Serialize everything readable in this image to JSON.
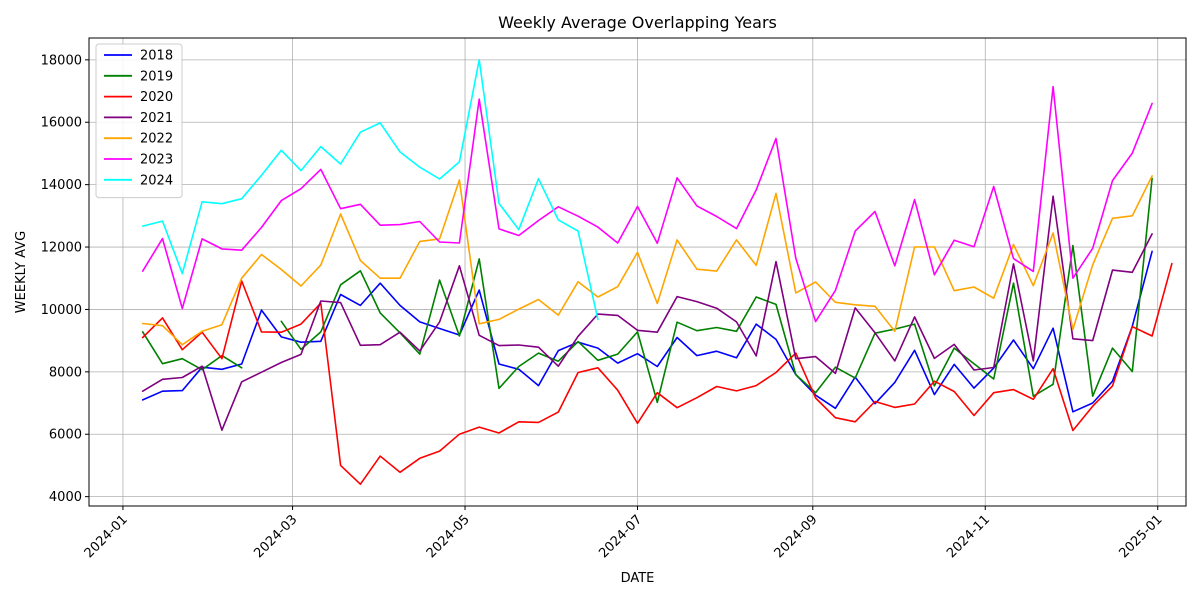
{
  "chart_data": {
    "type": "line",
    "title": "Weekly Average Overlapping Years",
    "xlabel": "DATE",
    "ylabel": "WEEKLY AVG",
    "x_start": "2024-01-08",
    "x_step_days": 7,
    "xlim": [
      "2023-12-20",
      "2025-01-11"
    ],
    "ylim": [
      3700,
      18700
    ],
    "x_ticks": [
      "2024-01-01",
      "2024-03-01",
      "2024-05-01",
      "2024-07-01",
      "2024-09-01",
      "2024-11-01",
      "2025-01-01"
    ],
    "x_tick_labels": [
      "2024-01",
      "2024-03",
      "2024-05",
      "2024-07",
      "2024-09",
      "2024-11",
      "2025-01"
    ],
    "y_ticks": [
      4000,
      6000,
      8000,
      10000,
      12000,
      14000,
      16000,
      18000
    ],
    "y_tick_labels": [
      "4000",
      "6000",
      "8000",
      "10000",
      "12000",
      "14000",
      "16000",
      "18000"
    ],
    "grid": true,
    "legend_position": "top-left",
    "series": [
      {
        "name": "2018",
        "color": "#0000ff",
        "values": [
          7100,
          7380,
          7400,
          8150,
          8080,
          8250,
          9980,
          9120,
          8950,
          8980,
          10480,
          10130,
          10840,
          10130,
          9600,
          9390,
          9180,
          10620,
          8250,
          8080,
          7560,
          8680,
          8950,
          8760,
          8280,
          8580,
          8170,
          9100,
          8520,
          8660,
          8450,
          9530,
          9040,
          7910,
          7250,
          6830,
          7830,
          6980,
          7660,
          8690,
          7270,
          8240,
          7480,
          8120,
          9020,
          8100,
          9400,
          6720,
          7000,
          7700,
          9460,
          11860
        ]
      },
      {
        "name": "2019",
        "color": "#008000",
        "values": [
          9280,
          8260,
          8420,
          8070,
          8520,
          8130,
          null,
          9620,
          8720,
          9280,
          10790,
          11240,
          9890,
          9250,
          8570,
          10940,
          9150,
          11620,
          7470,
          8170,
          8600,
          8340,
          8970,
          8370,
          8570,
          9280,
          7020,
          9590,
          9320,
          9420,
          9300,
          10400,
          10160,
          7910,
          7330,
          8150,
          7800,
          9240,
          9370,
          9530,
          7550,
          8760,
          8260,
          7770,
          10840,
          7220,
          7600,
          12050,
          7220,
          8760,
          8010,
          14200
        ]
      },
      {
        "name": "2020",
        "color": "#ff0000",
        "values": [
          9100,
          9730,
          8710,
          9270,
          8420,
          10910,
          9280,
          9270,
          9530,
          10200,
          5000,
          4400,
          5300,
          4780,
          5230,
          5460,
          6000,
          6230,
          6040,
          6400,
          6380,
          6710,
          7980,
          8130,
          7410,
          6350,
          7330,
          6850,
          7170,
          7530,
          7390,
          7560,
          7980,
          8600,
          7160,
          6530,
          6400,
          7050,
          6860,
          6970,
          7700,
          7370,
          6600,
          7330,
          7430,
          7120,
          8100,
          6120,
          6900,
          7550,
          9450,
          9150,
          11470
        ]
      },
      {
        "name": "2021",
        "color": "#800080",
        "values": [
          7380,
          7760,
          7820,
          8180,
          6130,
          7680,
          7990,
          8300,
          8560,
          10270,
          10220,
          8850,
          8870,
          9270,
          8670,
          9600,
          11400,
          9170,
          8840,
          8860,
          8790,
          8180,
          9140,
          9850,
          9810,
          9330,
          9270,
          10410,
          10250,
          10040,
          9600,
          8510,
          11530,
          8420,
          8490,
          7950,
          10050,
          9250,
          8350,
          9760,
          8430,
          8880,
          8060,
          8140,
          11460,
          8350,
          13630,
          9060,
          9000,
          11260,
          11190,
          12420
        ]
      },
      {
        "name": "2022",
        "color": "#ffa500",
        "values": [
          9550,
          9480,
          8870,
          9300,
          9510,
          11000,
          11760,
          11280,
          10750,
          11420,
          13060,
          11570,
          11000,
          11000,
          12180,
          12260,
          14150,
          9540,
          9680,
          10010,
          10320,
          9820,
          10890,
          10400,
          10730,
          11830,
          10190,
          12230,
          11290,
          11230,
          12230,
          11410,
          13720,
          10530,
          10880,
          10230,
          10150,
          10100,
          9300,
          12000,
          12000,
          10600,
          10720,
          10360,
          12080,
          10760,
          12450,
          9360,
          11430,
          12920,
          13000,
          14280
        ]
      },
      {
        "name": "2023",
        "color": "#ff00ff",
        "values": [
          11230,
          12270,
          10030,
          12260,
          11940,
          11900,
          12630,
          13490,
          13870,
          14490,
          13230,
          13370,
          12700,
          12720,
          12820,
          12160,
          12130,
          16740,
          12580,
          12370,
          12850,
          13290,
          12990,
          12640,
          12130,
          13300,
          12120,
          14220,
          13320,
          12980,
          12590,
          13830,
          15480,
          11640,
          9610,
          10610,
          12510,
          13140,
          11400,
          13520,
          11110,
          12220,
          12010,
          13940,
          11630,
          11220,
          17140,
          11000,
          11960,
          14130,
          15010,
          16600
        ]
      },
      {
        "name": "2024",
        "color": "#00ffff",
        "values": [
          12670,
          12830,
          11150,
          13450,
          13390,
          13550,
          14300,
          15100,
          14450,
          15220,
          14660,
          15680,
          15980,
          15050,
          14560,
          14180,
          14730,
          18000,
          13400,
          12560,
          14190,
          12870,
          12510,
          9680
        ]
      }
    ]
  }
}
